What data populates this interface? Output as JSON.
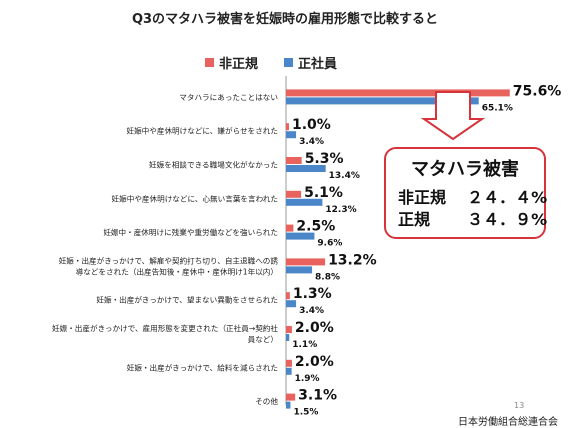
{
  "title": "Q3のマタハラ被害を妊娠時の雇用形態で比較すると",
  "legend": {
    "items": [
      {
        "name": "非正規",
        "color": "#e8635e"
      },
      {
        "name": "正社員",
        "color": "#4a86c8"
      }
    ]
  },
  "chart_data": {
    "type": "bar",
    "orientation": "horizontal",
    "title": "Q3のマタハラ被害を妊娠時の雇用形態で比較すると",
    "categories": [
      [
        "マタハラにあったことはない"
      ],
      [
        "妊娠中や産休明けなどに、嫌がらせをされた"
      ],
      [
        "妊娠を相談できる職場文化がなかった"
      ],
      [
        "妊娠中や産休明けなどに、心無い言葉を言われた"
      ],
      [
        "妊娠中・産休明けに残業や重労働などを強いられた"
      ],
      [
        "妊娠・出産がきっかけで、解雇や契約打ち切り、自主退職への誘",
        "導などをされた（出産告知後・産休中・産休明け1年以内）"
      ],
      [
        "妊娠・出産がきっかけで、望まない異動をさせられた"
      ],
      [
        "妊娠・出産がきっかけで、雇用形態を変更された（正社員→契約社",
        "員など）"
      ],
      [
        "妊娠・出産がきっかけで、給料を減らされた"
      ],
      [
        "その他"
      ]
    ],
    "series": [
      {
        "name": "非正規",
        "color": "#e8635e",
        "values": [
          75.6,
          1.0,
          5.3,
          5.1,
          2.5,
          13.2,
          1.3,
          2.0,
          2.0,
          3.1
        ],
        "labels": [
          "75.6%",
          "1.0%",
          "5.3%",
          "5.1%",
          "2.5%",
          "13.2%",
          "1.3%",
          "2.0%",
          "2.0%",
          "3.1%"
        ]
      },
      {
        "name": "正社員",
        "color": "#4a86c8",
        "values": [
          65.1,
          3.4,
          13.4,
          12.3,
          9.6,
          8.8,
          3.4,
          1.1,
          1.9,
          1.5
        ],
        "labels": [
          "65.1%",
          "3.4%",
          "13.4%",
          "12.3%",
          "9.6%",
          "8.8%",
          "3.4%",
          "1.1%",
          "1.9%",
          "1.5%"
        ]
      }
    ],
    "xlim": [
      0,
      100
    ],
    "grid": false
  },
  "callout": {
    "title": "マタハラ被害",
    "rows": [
      {
        "label": "非正規",
        "value": "２４．４%"
      },
      {
        "label": "正規",
        "value": "３４．９%"
      }
    ]
  },
  "footer": {
    "page_number": "13",
    "organization": "日本労働組合総連合会"
  }
}
